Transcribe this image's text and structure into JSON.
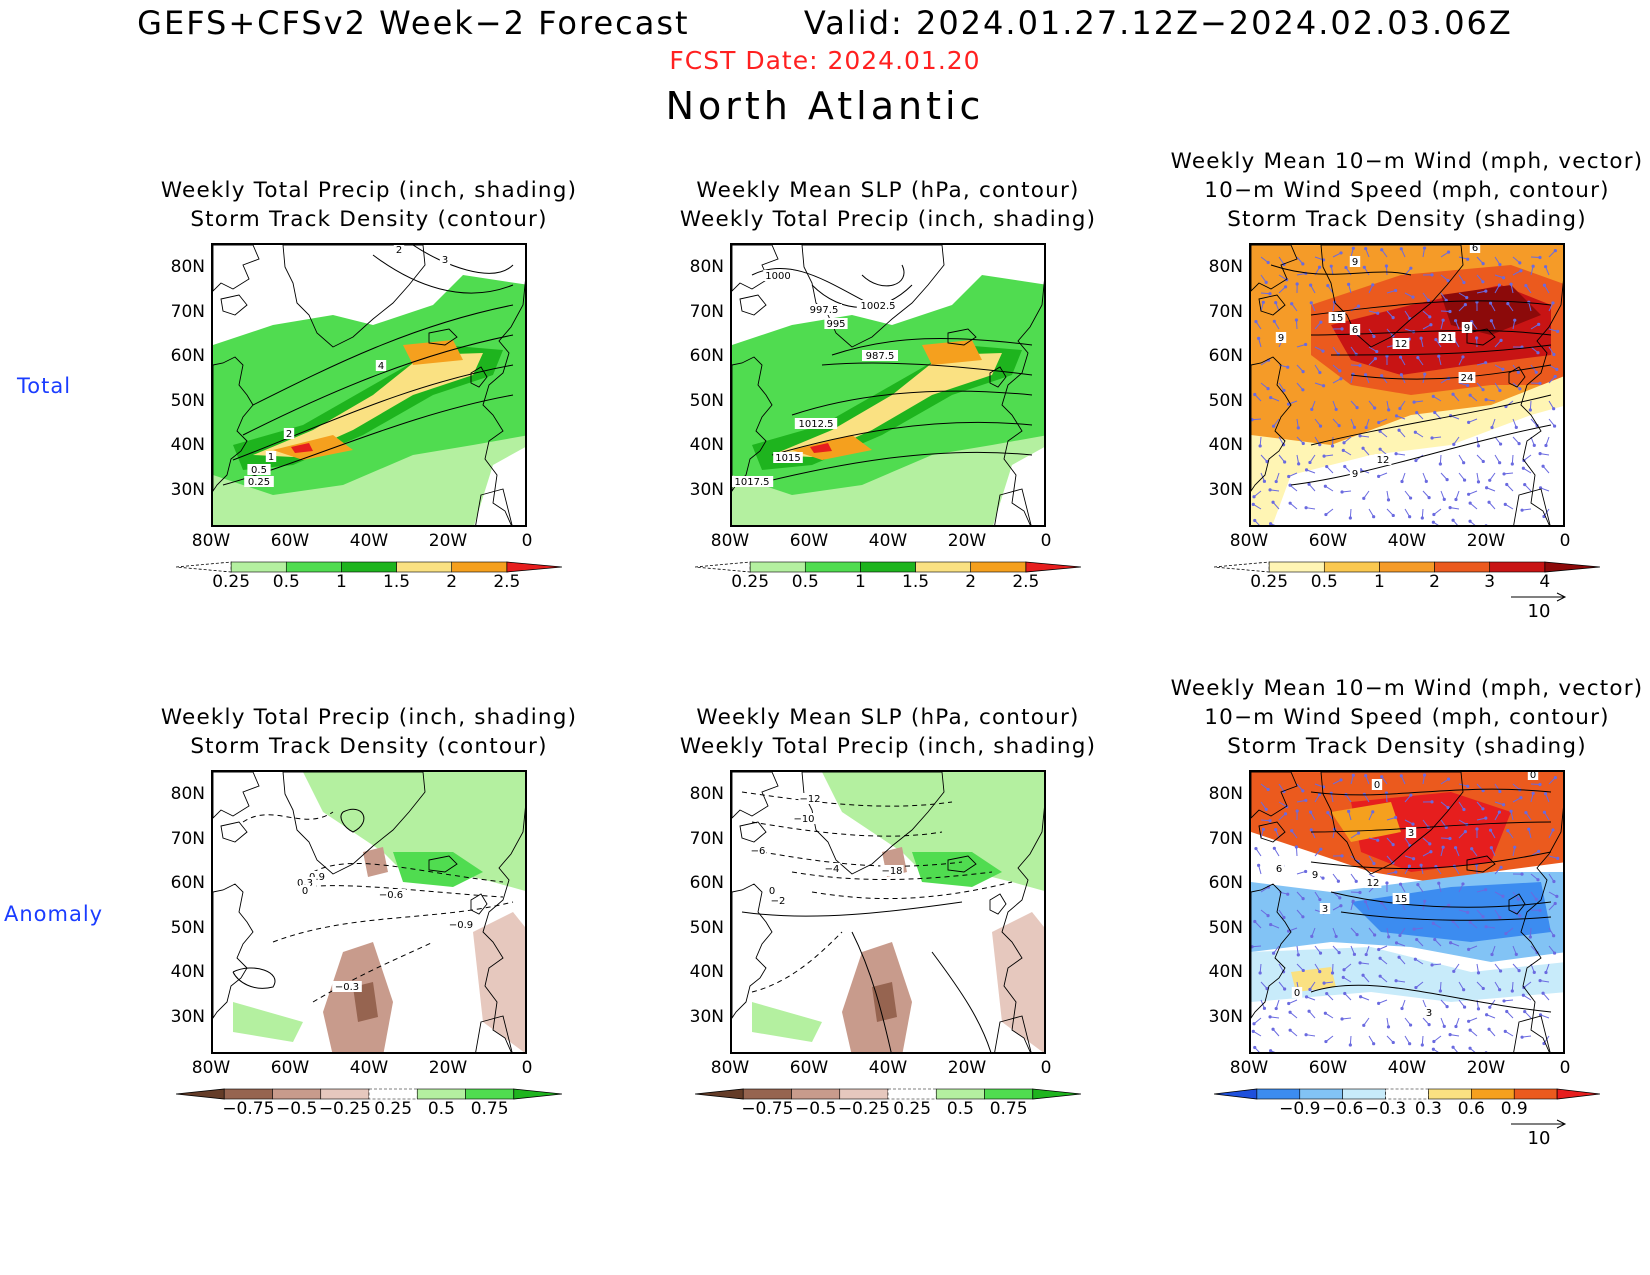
{
  "header": {
    "title_left": "GEFS+CFSv2 Week−2 Forecast",
    "title_right": "Valid: 2024.01.27.12Z−2024.02.03.06Z",
    "fcst_date": "FCST Date: 2024.01.20",
    "region": "North Atlantic"
  },
  "row_labels": [
    "Total",
    "Anomaly"
  ],
  "colors": {
    "row_label": "#1a3cff",
    "fcst_date": "#ff2020",
    "vector": "#6a6ae0"
  },
  "axes": {
    "lat_labels": [
      "80N",
      "70N",
      "60N",
      "50N",
      "40N",
      "30N"
    ],
    "lon_labels": [
      "80W",
      "60W",
      "40W",
      "20W",
      "0"
    ]
  },
  "panels": [
    {
      "id": "total-precip-storm",
      "title_lines": [
        "Weekly Total Precip (inch, shading)",
        "Storm Track Density (contour)"
      ],
      "contour_labels": [
        "2",
        "3",
        "4",
        "2",
        "1",
        "0.5",
        "0.25"
      ],
      "colorbar": {
        "labels": [
          "0.25",
          "0.5",
          "1",
          "1.5",
          "2",
          "2.5"
        ],
        "colors": [
          "#ffffff",
          "#b4f0a0",
          "#50dc50",
          "#1eb41e",
          "#fae182",
          "#f5a01e",
          "#e61e1e"
        ]
      }
    },
    {
      "id": "total-slp-precip",
      "title_lines": [
        "Weekly Mean SLP (hPa, contour)",
        "Weekly Total Precip (inch, shading)"
      ],
      "contour_labels": [
        "1000",
        "997.5",
        "1002.5",
        "995",
        "987.5",
        "1012.5",
        "1015",
        "1017.5"
      ],
      "colorbar": {
        "labels": [
          "0.25",
          "0.5",
          "1",
          "1.5",
          "2",
          "2.5"
        ],
        "colors": [
          "#ffffff",
          "#b4f0a0",
          "#50dc50",
          "#1eb41e",
          "#fae182",
          "#f5a01e",
          "#e61e1e"
        ]
      }
    },
    {
      "id": "total-wind-storm",
      "title_lines": [
        "Weekly Mean 10−m Wind (mph, vector)",
        "10−m Wind Speed (mph, contour)",
        "Storm Track Density (shading)"
      ],
      "contour_labels": [
        "9",
        "6",
        "15",
        "6",
        "9",
        "12",
        "21",
        "9",
        "24",
        "12",
        "9"
      ],
      "colorbar": {
        "labels": [
          "0.25",
          "0.5",
          "1",
          "2",
          "3",
          "4"
        ],
        "colors": [
          "#ffffff",
          "#fff5b4",
          "#fac850",
          "#f59b28",
          "#eb5a1e",
          "#c81414",
          "#8c0a0a"
        ]
      },
      "vector_ref": "10"
    },
    {
      "id": "anom-precip-storm",
      "title_lines": [
        "Weekly Total Precip (inch, shading)",
        "Storm Track Density (contour)"
      ],
      "contour_labels": [
        "0.9",
        "0.3",
        "0",
        "−0.6",
        "−0.9",
        "−0.3"
      ],
      "colorbar": {
        "labels": [
          "−0.75",
          "−0.5",
          "−0.25",
          "0.25",
          "0.5",
          "0.75"
        ],
        "colors": [
          "#643c28",
          "#966450",
          "#c89b8c",
          "#e6c8be",
          "#ffffff",
          "#b4f0a0",
          "#50dc50",
          "#1eb41e"
        ]
      }
    },
    {
      "id": "anom-slp-precip",
      "title_lines": [
        "Weekly Mean SLP (hPa, contour)",
        "Weekly Total Precip (inch, shading)"
      ],
      "contour_labels": [
        "−12",
        "−10",
        "−6",
        "−4",
        "−18",
        "0",
        "−2"
      ],
      "colorbar": {
        "labels": [
          "−0.75",
          "−0.5",
          "−0.25",
          "0.25",
          "0.5",
          "0.75"
        ],
        "colors": [
          "#643c28",
          "#966450",
          "#c89b8c",
          "#e6c8be",
          "#ffffff",
          "#b4f0a0",
          "#50dc50",
          "#1eb41e"
        ]
      }
    },
    {
      "id": "anom-wind-storm",
      "title_lines": [
        "Weekly Mean 10−m Wind (mph, vector)",
        "10−m Wind Speed (mph, contour)",
        "Storm Track Density (shading)"
      ],
      "contour_labels": [
        "0",
        "0",
        "3",
        "9",
        "12",
        "15",
        "3",
        "6",
        "0",
        "3"
      ],
      "colorbar": {
        "labels": [
          "−0.9",
          "−0.6",
          "−0.3",
          "0.3",
          "0.6",
          "0.9"
        ],
        "colors": [
          "#1e50dc",
          "#3c8cf0",
          "#82c3f5",
          "#c8ebfa",
          "#ffffff",
          "#fae182",
          "#f5a01e",
          "#eb5a1e",
          "#e61e1e"
        ]
      },
      "vector_ref": "10"
    }
  ]
}
